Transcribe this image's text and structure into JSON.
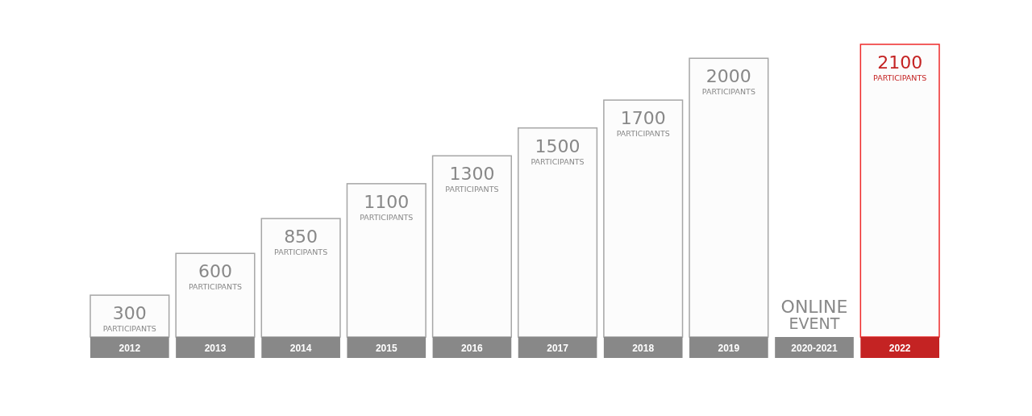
{
  "chart_data": {
    "type": "bar",
    "categories": [
      "2012",
      "2013",
      "2014",
      "2015",
      "2016",
      "2017",
      "2018",
      "2019",
      "2020-2021",
      "2022"
    ],
    "values": [
      300,
      600,
      850,
      1100,
      1300,
      1500,
      1700,
      2000,
      null,
      2100
    ],
    "value_labels": [
      "300 PARTICIPANTS",
      "600 PARTICIPANTS",
      "850 PARTICIPANTS",
      "1100 PARTICIPANTS",
      "1300 PARTICIPANTS",
      "1500 PARTICIPANTS",
      "1700 PARTICIPANTS",
      "2000 PARTICIPANTS",
      "ONLINE EVENT",
      "2100 PARTICIPANTS"
    ],
    "colors": [
      "#a6a6a6",
      "#a6a6a6",
      "#a6a6a6",
      "#a6a6a6",
      "#a6a6a6",
      "#a6a6a6",
      "#a6a6a6",
      "#a6a6a6",
      "#a6a6a6",
      "#ee2a2a"
    ]
  }
}
